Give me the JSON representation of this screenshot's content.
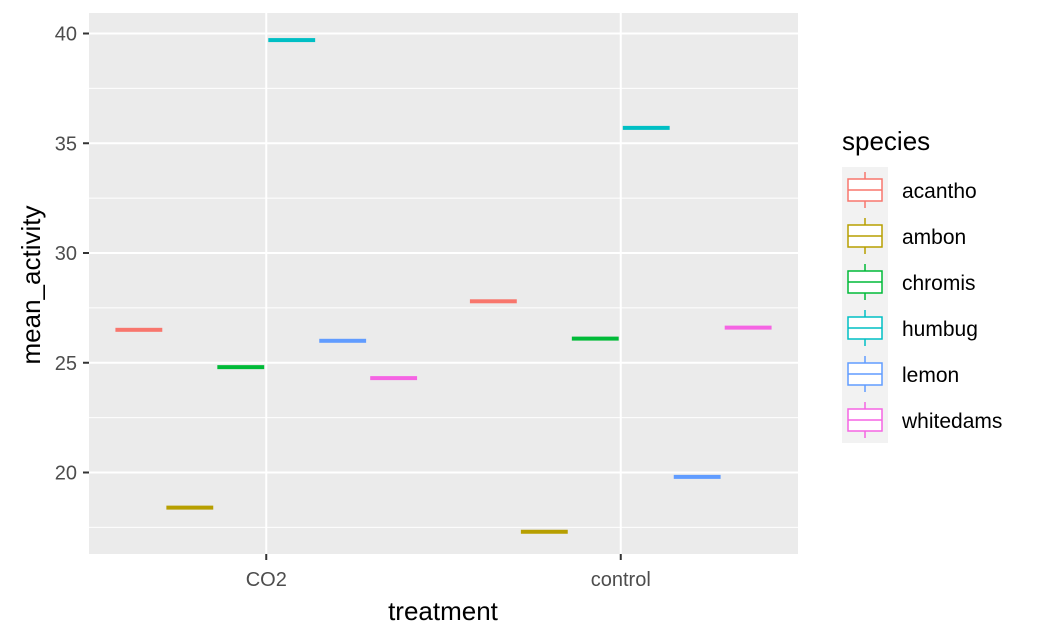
{
  "chart_data": {
    "type": "boxplot",
    "xlabel": "treatment",
    "ylabel": "mean_activity",
    "categories": [
      "CO2",
      "control"
    ],
    "y_ticks": [
      20,
      25,
      30,
      35,
      40
    ],
    "ylim": [
      15.7,
      41.0
    ],
    "grid": true,
    "legend": {
      "title": "species",
      "placement": "right"
    },
    "series": [
      {
        "name": "acantho",
        "color": "#F8766D",
        "values": [
          26.5,
          27.8
        ]
      },
      {
        "name": "ambon",
        "color": "#B79F00",
        "values": [
          18.4,
          17.3
        ]
      },
      {
        "name": "chromis",
        "color": "#00BA38",
        "values": [
          24.8,
          26.1
        ]
      },
      {
        "name": "humbug",
        "color": "#00BFC4",
        "values": [
          39.7,
          35.7
        ]
      },
      {
        "name": "lemon",
        "color": "#619CFF",
        "values": [
          26.0,
          19.8
        ]
      },
      {
        "name": "whitedams",
        "color": "#F564E3",
        "values": [
          24.3,
          26.6
        ]
      }
    ]
  }
}
